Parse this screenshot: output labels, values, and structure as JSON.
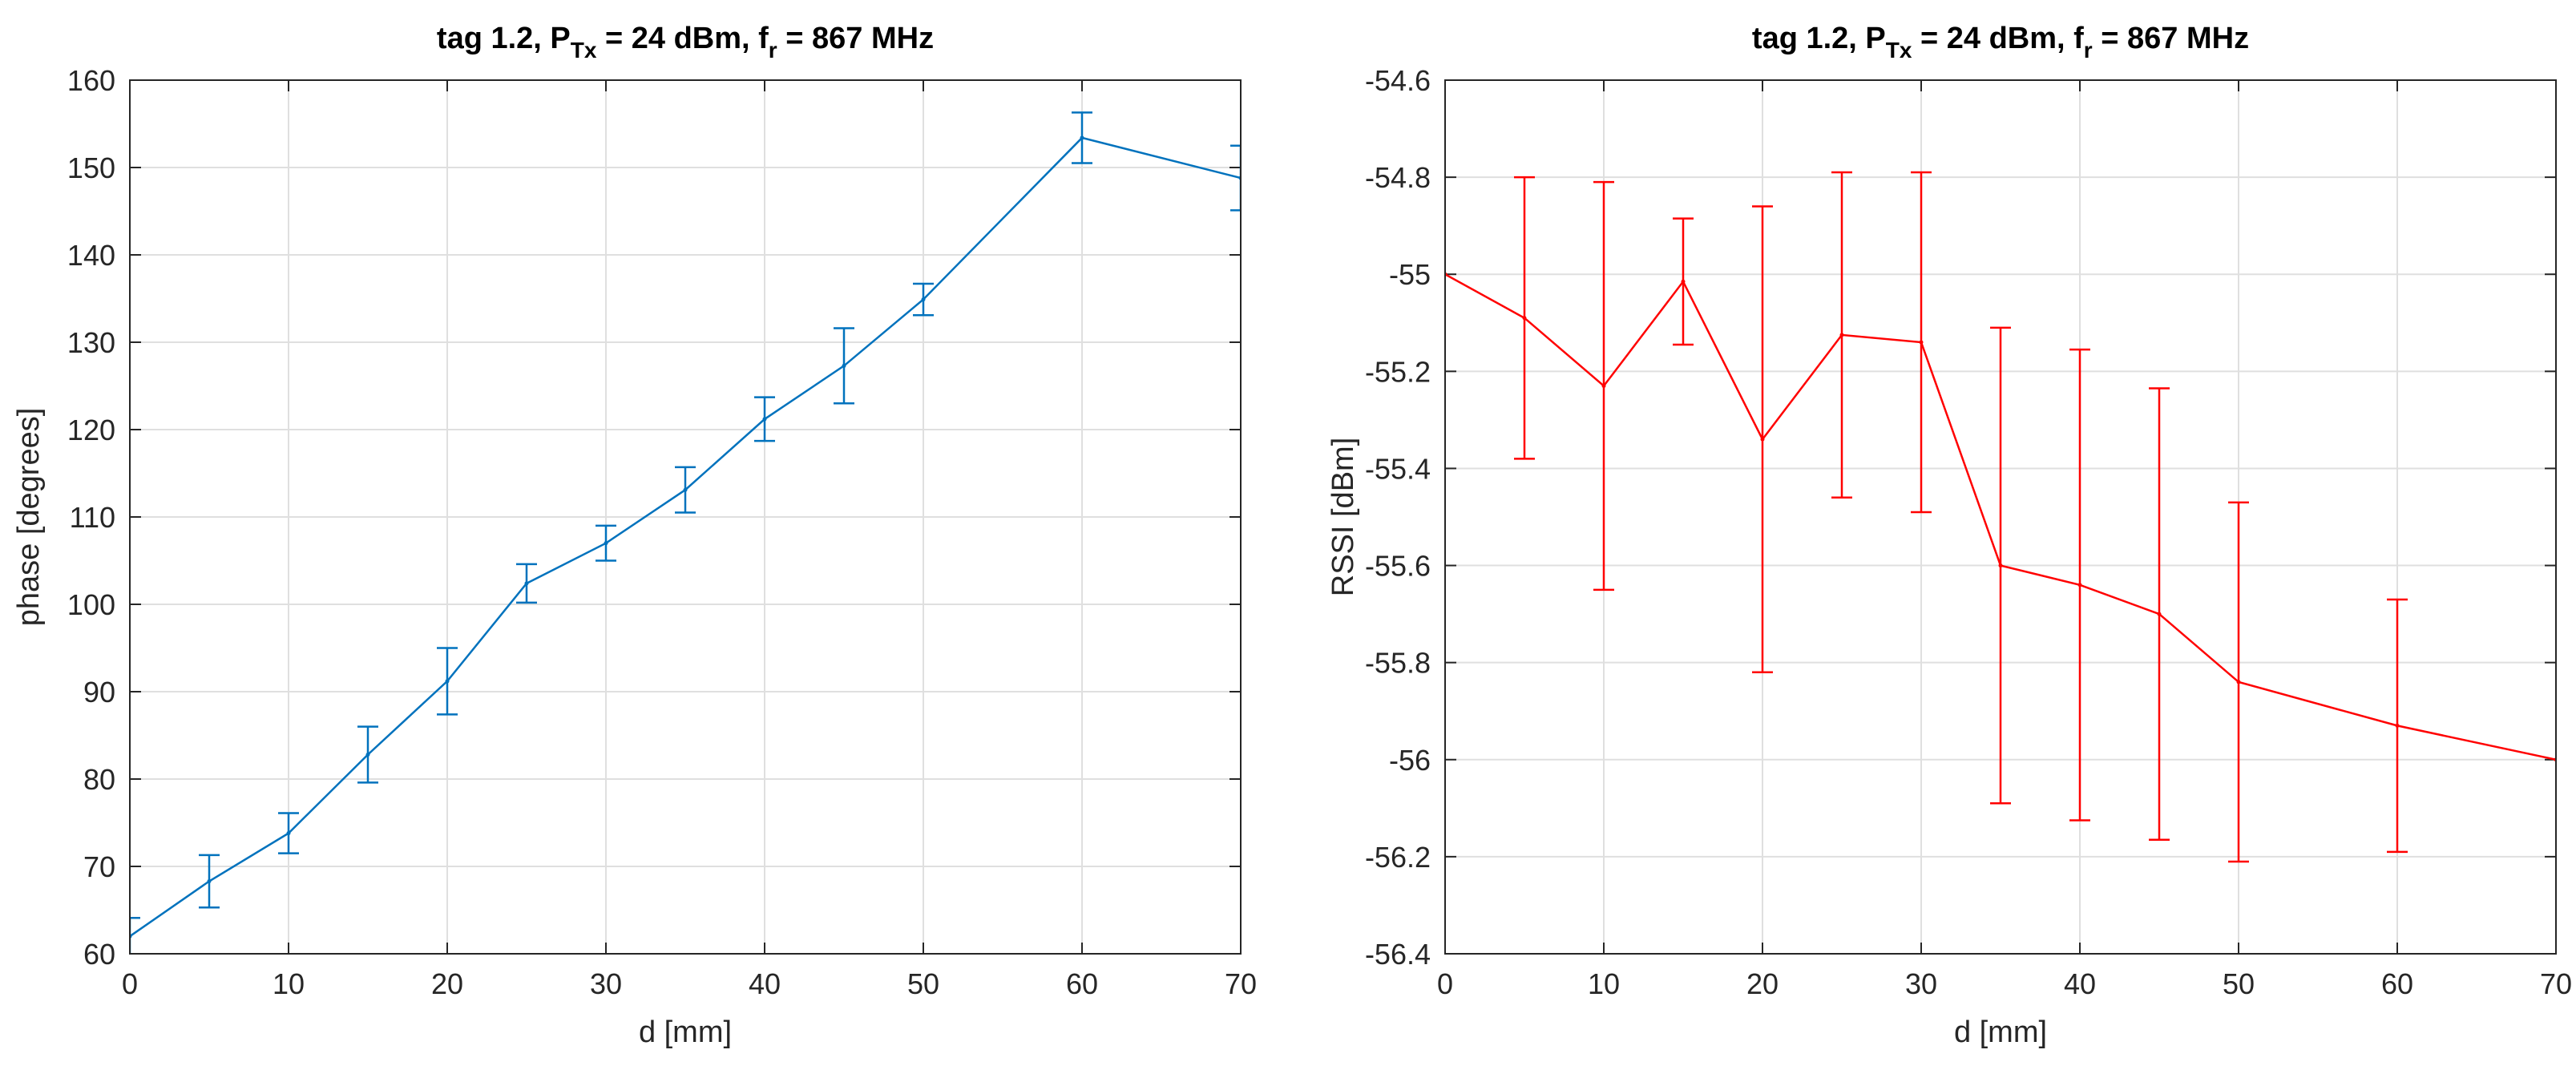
{
  "chart_data": [
    {
      "type": "line",
      "errorbars": true,
      "title": {
        "prefix": "tag 1.2, P",
        "p_sub": "Tx",
        "mid": " = 24 dBm, f",
        "f_sub": "r",
        "suffix": " = 867 MHz"
      },
      "xlabel": "d [mm]",
      "ylabel": "phase [degrees]",
      "xlim": [
        0,
        70
      ],
      "ylim": [
        60,
        160
      ],
      "xticks": [
        0,
        10,
        20,
        30,
        40,
        50,
        60,
        70
      ],
      "yticks": [
        60,
        70,
        80,
        90,
        100,
        110,
        120,
        130,
        140,
        150,
        160
      ],
      "xtick_labels": [
        "0",
        "10",
        "20",
        "30",
        "40",
        "50",
        "60",
        "70"
      ],
      "ytick_labels": [
        "60",
        "70",
        "80",
        "90",
        "100",
        "110",
        "120",
        "130",
        "140",
        "150",
        "160"
      ],
      "grid": true,
      "color": "#0072BD",
      "series": [
        {
          "name": "phase",
          "x": [
            0,
            5,
            10,
            15,
            20,
            25,
            30,
            35,
            40,
            45,
            50,
            60,
            70
          ],
          "y": [
            62.0,
            68.3,
            73.8,
            82.8,
            91.2,
            102.4,
            107.0,
            113.1,
            121.2,
            127.3,
            134.9,
            153.4,
            148.8
          ],
          "err": [
            2.1,
            3.0,
            2.3,
            3.2,
            3.8,
            2.2,
            2.0,
            2.6,
            2.5,
            4.3,
            1.8,
            2.9,
            3.7
          ]
        }
      ]
    },
    {
      "type": "line",
      "errorbars": true,
      "title": {
        "prefix": "tag 1.2, P",
        "p_sub": "Tx",
        "mid": " = 24 dBm, f",
        "f_sub": "r",
        "suffix": " = 867 MHz"
      },
      "xlabel": "d [mm]",
      "ylabel": "RSSI [dBm]",
      "xlim": [
        0,
        70
      ],
      "ylim": [
        -56.4,
        -54.6
      ],
      "xticks": [
        0,
        10,
        20,
        30,
        40,
        50,
        60,
        70
      ],
      "yticks": [
        -56.4,
        -56.2,
        -56,
        -55.8,
        -55.6,
        -55.4,
        -55.2,
        -55,
        -54.8,
        -54.6
      ],
      "xtick_labels": [
        "0",
        "10",
        "20",
        "30",
        "40",
        "50",
        "60",
        "70"
      ],
      "ytick_labels": [
        "-56.4",
        "-56.2",
        "-56",
        "-55.8",
        "-55.6",
        "-55.4",
        "-55.2",
        "-55",
        "-54.8",
        "-54.6"
      ],
      "grid": true,
      "color": "#FF0000",
      "series": [
        {
          "name": "RSSI",
          "x": [
            0,
            5,
            10,
            15,
            20,
            25,
            30,
            35,
            40,
            45,
            50,
            60,
            70
          ],
          "y": [
            -55.0,
            -55.09,
            -55.23,
            -55.015,
            -55.34,
            -55.125,
            -55.14,
            -55.6,
            -55.64,
            -55.7,
            -55.84,
            -55.93,
            -56.0
          ],
          "err": [
            0.0,
            0.29,
            0.42,
            0.13,
            0.48,
            0.335,
            0.35,
            0.49,
            0.485,
            0.465,
            0.37,
            0.26,
            0.0
          ]
        }
      ]
    }
  ]
}
